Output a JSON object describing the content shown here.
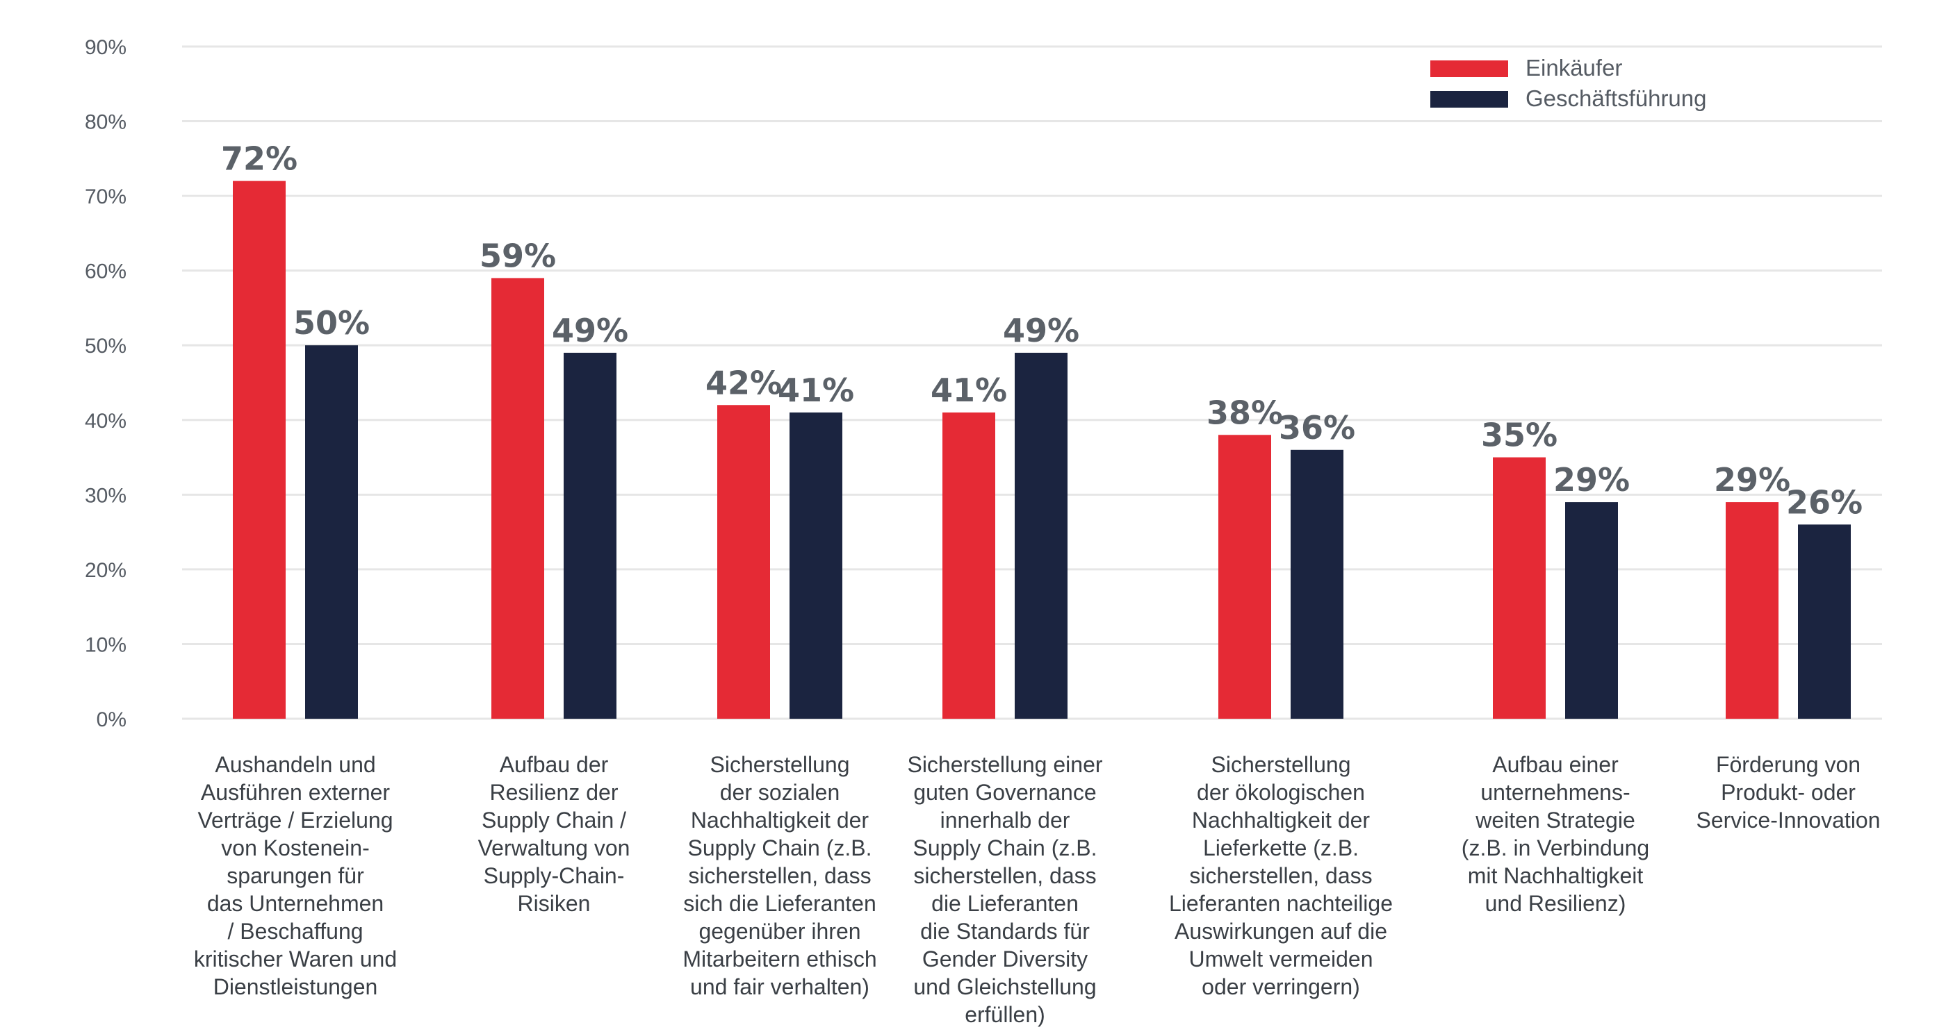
{
  "chart_data": {
    "type": "bar",
    "y_ticks": [
      "0%",
      "10%",
      "20%",
      "30%",
      "40%",
      "50%",
      "60%",
      "70%",
      "80%",
      "90%"
    ],
    "ylim": [
      0,
      90
    ],
    "grid": true,
    "legend_position": "top-right",
    "categories": [
      "Aushandeln und Ausführen externer Verträge / Erzielung von Kostenein-sparungen für das Unternehmen / Beschaffung kritischer Waren und Dienstleistungen",
      "Aufbau der Resilienz der Supply Chain / Verwaltung von Supply-Chain-Risiken",
      "Sicherstellung der sozialen Nachhaltigkeit der Supply Chain (z.B. sicherstellen, dass sich die Lieferanten gegenüber ihren Mitarbeitern ethisch und fair verhalten)",
      "Sicherstellung einer guten Governance innerhalb der Supply Chain (z.B. sicherstellen, dass die Lieferanten die Standards für Gender Diversity und Gleichstellung erfüllen)",
      "Sicherstellung der ökologischen Nachhaltigkeit der Lieferkette (z.B. sicherstellen, dass Lieferanten nachteilige Auswirkungen auf die Umwelt vermeiden oder verringern)",
      "Aufbau einer unternehmens-weiten Strategie (z.B. in Verbindung mit Nachhaltigkeit und Resilienz)",
      "Förderung von Produkt- oder Service-Innovation"
    ],
    "category_lines": [
      [
        "Aushandeln und",
        "Ausführen externer",
        "Verträge / Erzielung",
        "von Kostenein-",
        "sparungen für",
        "das Unternehmen",
        "/ Beschaffung",
        "kritischer Waren und",
        "Dienstleistungen"
      ],
      [
        "Aufbau der",
        "Resilienz der",
        "Supply Chain /",
        "Verwaltung von",
        "Supply-Chain-",
        "Risiken"
      ],
      [
        "Sicherstellung",
        "der sozialen",
        "Nachhaltigkeit der",
        "Supply Chain (z.B.",
        "sicherstellen, dass",
        "sich die Lieferanten",
        "gegenüber ihren",
        "Mitarbeitern ethisch",
        "und fair verhalten)"
      ],
      [
        "Sicherstellung einer",
        "guten Governance",
        "innerhalb der",
        "Supply Chain (z.B.",
        "sicherstellen, dass",
        "die Lieferanten",
        "die Standards für",
        "Gender Diversity",
        "und Gleichstellung",
        "erfüllen)"
      ],
      [
        "Sicherstellung",
        "der ökologischen",
        "Nachhaltigkeit der",
        "Lieferkette (z.B.",
        "sicherstellen, dass",
        "Lieferanten nachteilige",
        "Auswirkungen auf die",
        "Umwelt vermeiden",
        "oder verringern)"
      ],
      [
        "Aufbau einer",
        "unternehmens-",
        "weiten Strategie",
        "(z.B. in Verbindung",
        "mit Nachhaltigkeit",
        "und Resilienz)"
      ],
      [
        "Förderung von",
        "Produkt- oder",
        "Service-Innovation"
      ]
    ],
    "series": [
      {
        "name": "Einkäufer",
        "color": "#e52a35",
        "values": [
          72,
          59,
          42,
          41,
          38,
          35,
          29
        ],
        "labels": [
          "72%",
          "59%",
          "42%",
          "41%",
          "38%",
          "35%",
          "29%"
        ]
      },
      {
        "name": "Geschäftsführung",
        "color": "#1b2440",
        "values": [
          50,
          49,
          41,
          49,
          36,
          29,
          26
        ],
        "labels": [
          "50%",
          "49%",
          "41%",
          "49%",
          "36%",
          "29%",
          "26%"
        ]
      }
    ],
    "colors": {
      "grid": "#e6e6e6",
      "tick_text": "#555b63",
      "value_text": "#5b6168"
    }
  }
}
